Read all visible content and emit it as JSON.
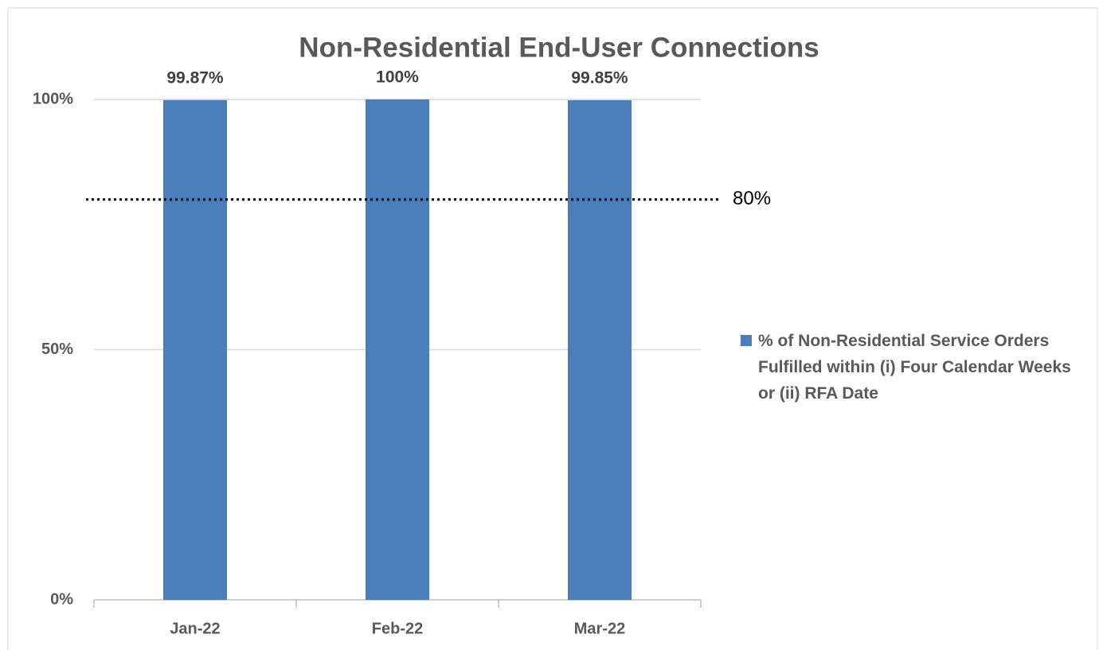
{
  "chart_data": {
    "type": "bar",
    "title": "Non-Residential End-User Connections",
    "categories": [
      "Jan-22",
      "Feb-22",
      "Mar-22"
    ],
    "series": [
      {
        "name": "% of Non-Residential Service Orders Fulfilled within (i) Four Calendar Weeks or (ii) RFA Date",
        "color": "#4a7ebb",
        "values": [
          99.87,
          100,
          99.85
        ],
        "value_labels": [
          "99.87%",
          "100%",
          "99.85%"
        ]
      }
    ],
    "ylim": [
      0,
      100
    ],
    "yticks": [
      {
        "value": 0,
        "label": "0%"
      },
      {
        "value": 50,
        "label": "50%"
      },
      {
        "value": 100,
        "label": "100%"
      }
    ],
    "grid": true,
    "target": {
      "value": 80,
      "label": "80%"
    },
    "legend": "right"
  }
}
